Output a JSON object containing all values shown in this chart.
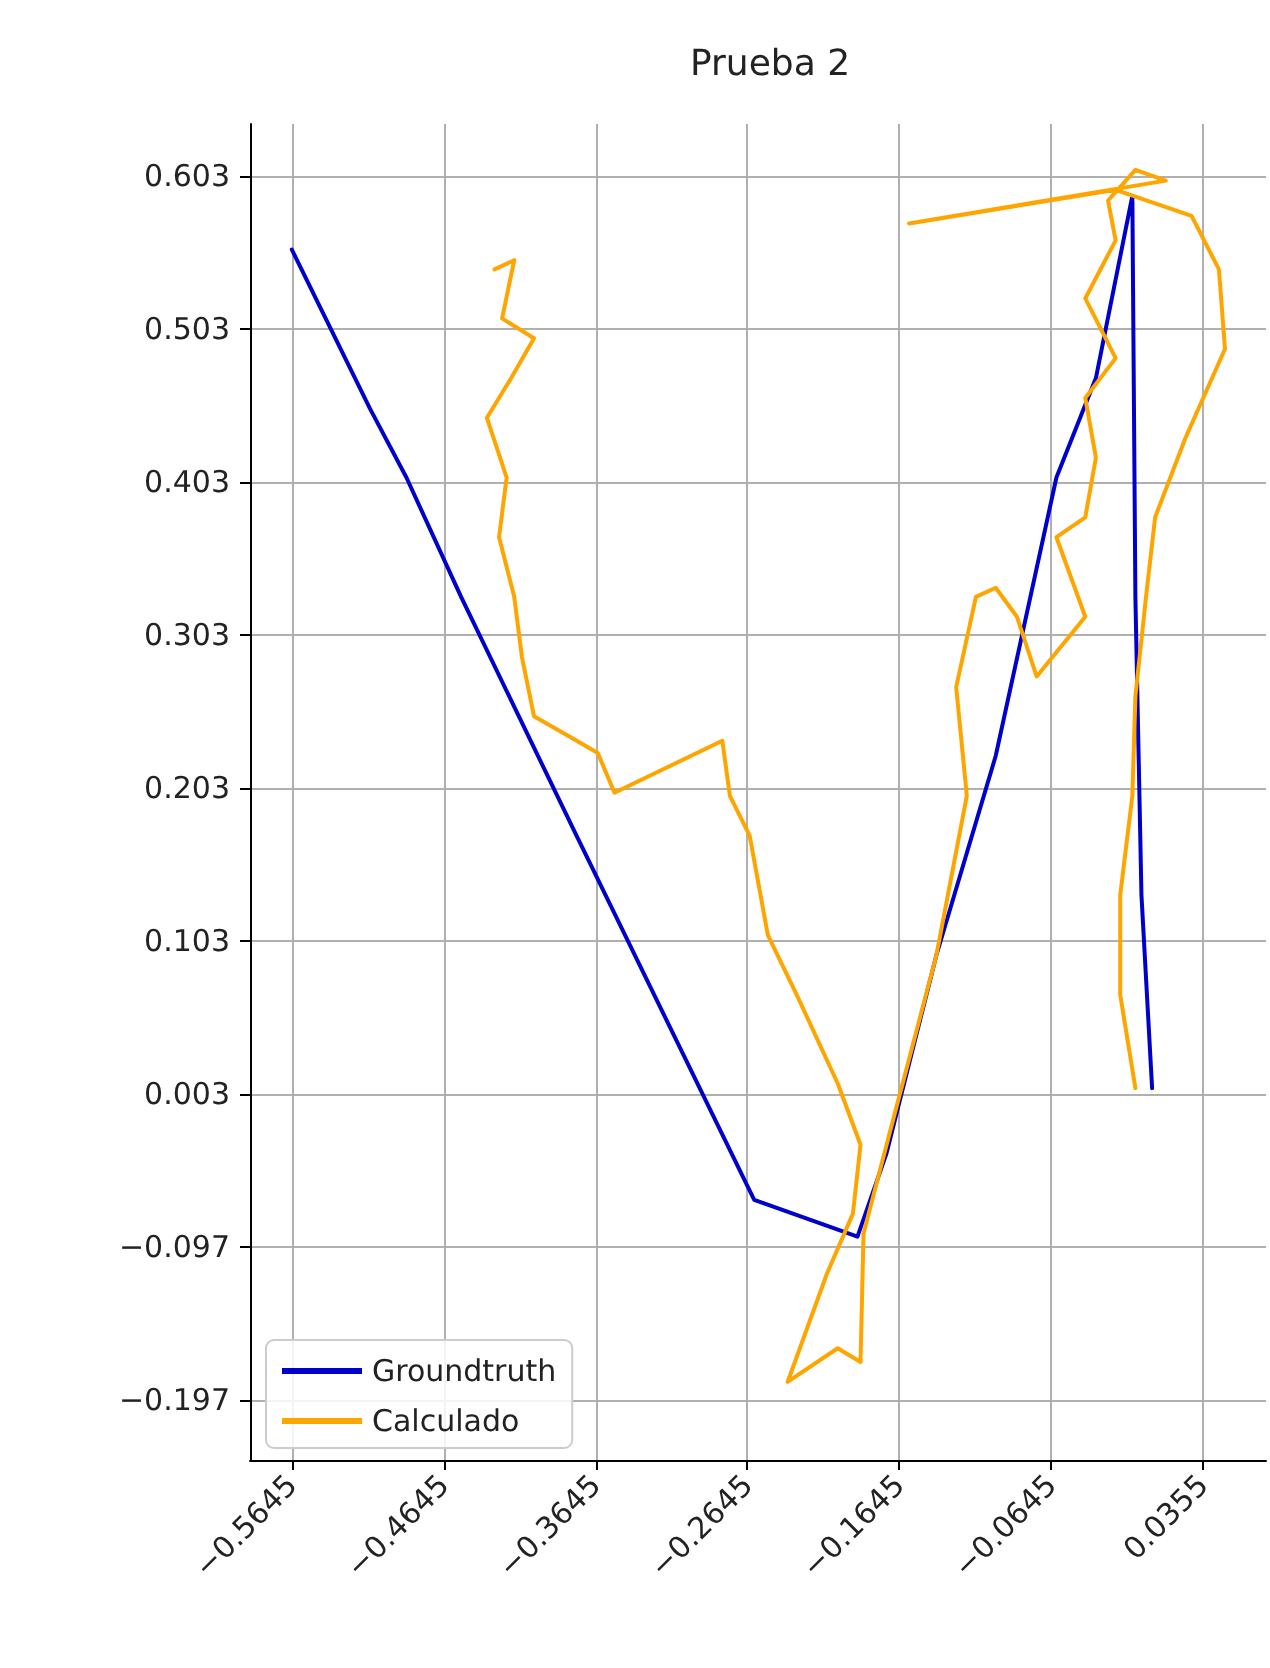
{
  "chart_data": {
    "type": "line",
    "title": "Prueba 2",
    "xlim": [
      -0.592,
      0.077
    ],
    "xticks": [
      {
        "value": -0.5645,
        "label": "−0.5645"
      },
      {
        "value": -0.4645,
        "label": "−0.4645"
      },
      {
        "value": -0.3645,
        "label": "−0.3645"
      },
      {
        "value": -0.2645,
        "label": "−0.2645"
      },
      {
        "value": -0.1645,
        "label": "−0.1645"
      },
      {
        "value": -0.0645,
        "label": "−0.0645"
      },
      0.0355
    ],
    "ylim": [
      -0.236,
      0.637
    ],
    "yticks": [
      {
        "value": -0.197,
        "label": "−0.197"
      },
      {
        "value": -0.097,
        "label": "−0.097"
      },
      0.003,
      0.103,
      0.203,
      0.303,
      0.403,
      0.503,
      0.603
    ],
    "grid": true,
    "legend": "bottom left",
    "marker": "none",
    "line_style": "solid",
    "series": [
      {
        "name": "Groundtruth",
        "color": "#0000cc",
        "x": [
          -0.5645,
          -0.513,
          -0.489,
          -0.453,
          -0.377,
          -0.26,
          -0.192,
          -0.173,
          -0.14,
          -0.101,
          -0.061,
          -0.035,
          -0.011,
          -0.009,
          -0.005,
          0.002
        ],
        "values": [
          0.555,
          0.451,
          0.406,
          0.328,
          0.172,
          -0.066,
          -0.09,
          -0.036,
          0.094,
          0.224,
          0.406,
          0.471,
          0.59,
          0.328,
          0.133,
          0.007
        ]
      },
      {
        "name": "Calculado",
        "color": "#ffa500",
        "x": [
          -0.431,
          -0.418,
          -0.426,
          -0.405,
          -0.42,
          -0.436,
          -0.423,
          -0.428,
          -0.418,
          -0.413,
          -0.405,
          -0.382,
          -0.363,
          -0.352,
          -0.281,
          -0.276,
          -0.263,
          -0.251,
          -0.232,
          -0.205,
          -0.19,
          -0.195,
          -0.212,
          -0.238,
          -0.205,
          -0.19,
          -0.188,
          -0.171,
          -0.14,
          -0.12,
          -0.127,
          -0.114,
          -0.101,
          -0.087,
          -0.074,
          -0.042,
          -0.061,
          -0.042,
          -0.035,
          -0.042,
          -0.022,
          -0.042,
          -0.022,
          -0.027,
          -0.009,
          0.011,
          -0.158,
          -0.022,
          0.028,
          0.046,
          0.05,
          0.024,
          0.004,
          -0.002,
          -0.009,
          -0.011,
          -0.019,
          -0.019,
          -0.009
        ],
        "values": [
          0.542,
          0.548,
          0.51,
          0.497,
          0.471,
          0.445,
          0.406,
          0.367,
          0.328,
          0.289,
          0.25,
          0.237,
          0.226,
          0.2,
          0.234,
          0.198,
          0.172,
          0.107,
          0.068,
          0.01,
          -0.03,
          -0.075,
          -0.114,
          -0.185,
          -0.163,
          -0.172,
          -0.088,
          -0.023,
          0.094,
          0.198,
          0.269,
          0.328,
          0.334,
          0.315,
          0.276,
          0.315,
          0.367,
          0.38,
          0.419,
          0.458,
          0.484,
          0.523,
          0.561,
          0.587,
          0.607,
          0.6,
          0.572,
          0.594,
          0.577,
          0.542,
          0.49,
          0.432,
          0.38,
          0.328,
          0.263,
          0.198,
          0.133,
          0.068,
          0.007
        ]
      }
    ]
  }
}
